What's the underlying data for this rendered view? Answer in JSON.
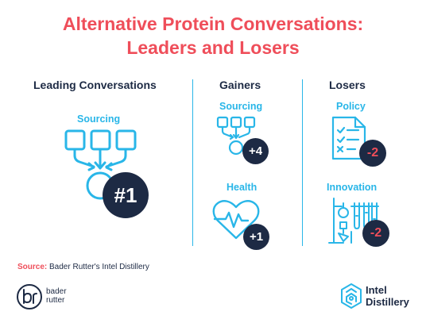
{
  "title": {
    "line1": "Alternative Protein Conversations:",
    "line2": "Leaders and Losers"
  },
  "columns": {
    "leading": {
      "heading": "Leading Conversations",
      "topic": "Sourcing",
      "rank": "#1",
      "icon": "sourcing-flow-icon"
    },
    "gainers": {
      "heading": "Gainers",
      "items": [
        {
          "topic": "Sourcing",
          "change": "+4",
          "icon": "sourcing-flow-icon"
        },
        {
          "topic": "Health",
          "change": "+1",
          "icon": "heart-pulse-icon"
        }
      ]
    },
    "losers": {
      "heading": "Losers",
      "items": [
        {
          "topic": "Policy",
          "change": "-2",
          "icon": "checklist-document-icon"
        },
        {
          "topic": "Innovation",
          "change": "-2",
          "icon": "lab-equipment-icon"
        }
      ]
    }
  },
  "source": {
    "label": "Source:",
    "text": " Bader Rutter's Intel Distillery"
  },
  "logos": {
    "bader_rutter": {
      "line1": "bader",
      "line2": "rutter"
    },
    "intel_distillery": {
      "line1": "Intel",
      "line2": "Distillery"
    }
  },
  "colors": {
    "accent": "#ef4e5a",
    "icon_blue": "#29b6e8",
    "navy": "#1d2a44"
  }
}
